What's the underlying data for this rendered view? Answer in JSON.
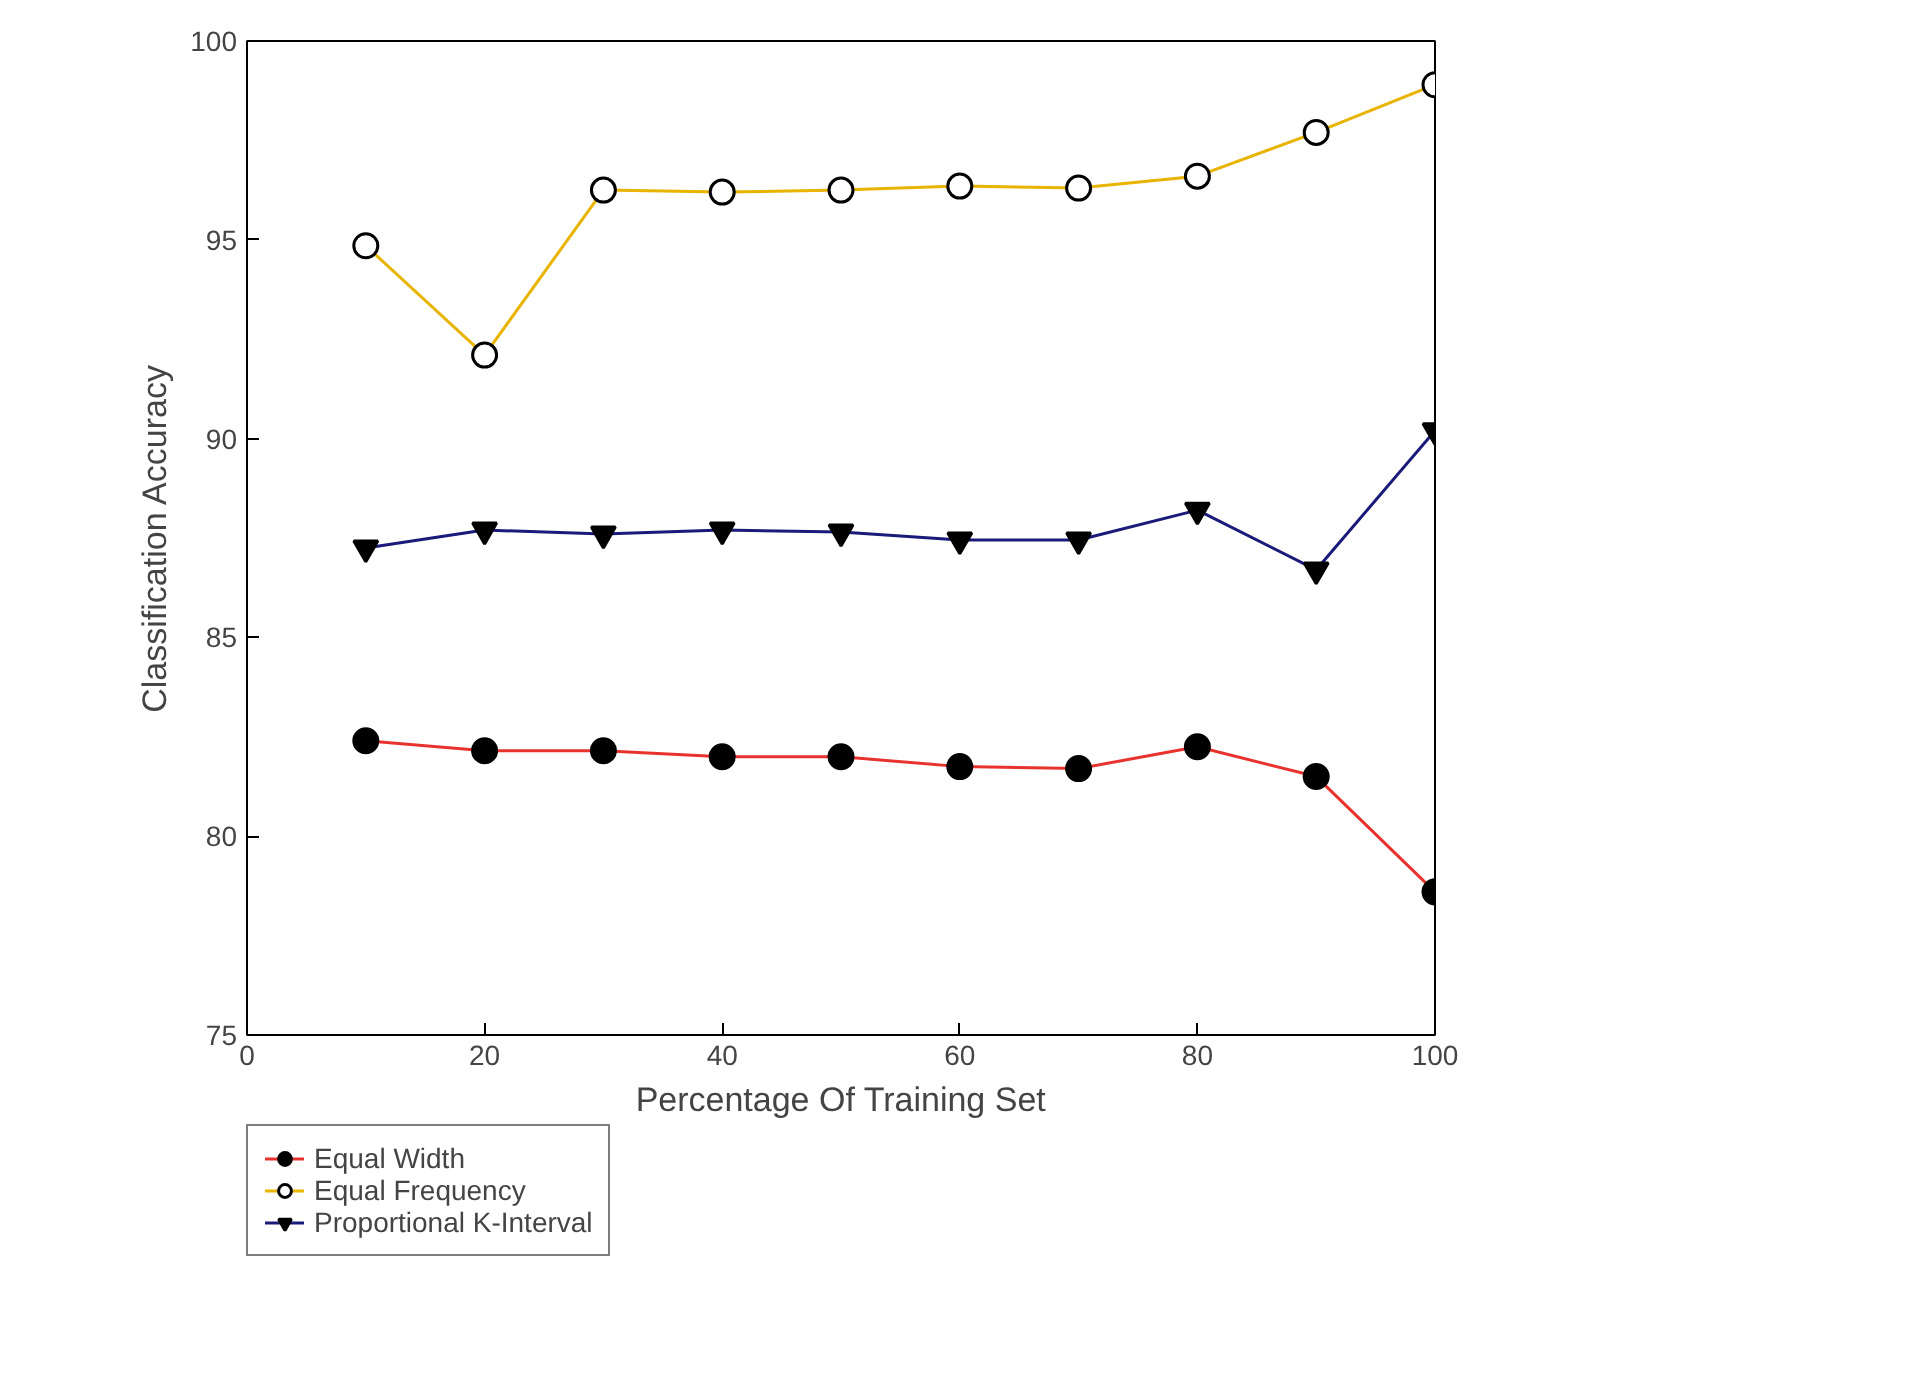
{
  "chart_data": {
    "type": "line",
    "xlabel": "Percentage Of Training Set",
    "ylabel": "Classification Accuracy",
    "x": [
      10,
      20,
      30,
      40,
      50,
      60,
      70,
      80,
      90,
      100
    ],
    "series": [
      {
        "name": "Equal Width",
        "color": "#e8322e",
        "marker": "circle",
        "values": [
          82.4,
          82.15,
          82.15,
          82.0,
          82.0,
          81.75,
          81.7,
          82.25,
          81.5,
          78.6
        ]
      },
      {
        "name": "Equal Frequency",
        "color": "#e8b400",
        "marker": "circle_open",
        "values": [
          94.85,
          92.1,
          96.25,
          96.2,
          96.25,
          96.35,
          96.3,
          96.6,
          97.7,
          98.9
        ]
      },
      {
        "name": "Proportional K-Interval",
        "color": "#1a1a7a",
        "marker": "triangle_down",
        "values": [
          87.25,
          87.7,
          87.6,
          87.7,
          87.65,
          87.45,
          87.45,
          88.2,
          86.7,
          90.2
        ]
      }
    ],
    "xlim": [
      0,
      100
    ],
    "ylim": [
      75,
      100
    ],
    "xticks": [
      0,
      20,
      40,
      60,
      80,
      100
    ],
    "yticks": [
      75,
      80,
      85,
      90,
      95,
      100
    ],
    "grid": false,
    "legend": "bottom left",
    "line_style": "solid"
  }
}
